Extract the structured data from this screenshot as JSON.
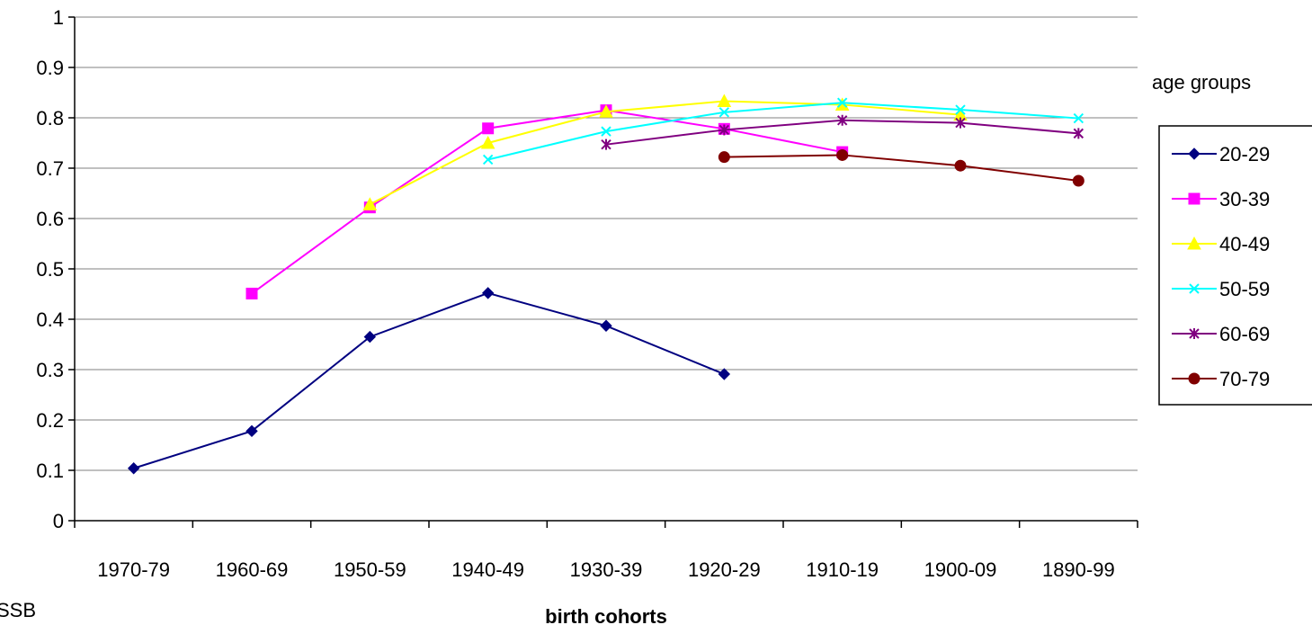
{
  "chart_data": {
    "type": "line",
    "categories": [
      "1970-79",
      "1960-69",
      "1950-59",
      "1940-49",
      "1930-39",
      "1920-29",
      "1910-19",
      "1900-09",
      "1890-99"
    ],
    "xlabel": "birth cohorts",
    "ylabel": "",
    "ylim": [
      0,
      1
    ],
    "yticks": [
      "0",
      "0.1",
      "0.2",
      "0.3",
      "0.4",
      "0.5",
      "0.6",
      "0.7",
      "0.8",
      "0.9",
      "1"
    ],
    "grid": true,
    "legend_title": "age groups",
    "legend_position": "right",
    "series": [
      {
        "name": "20-29",
        "color": "#000080",
        "marker": "diamond",
        "values": [
          0.104,
          0.178,
          0.365,
          0.452,
          0.387,
          0.291,
          null,
          null,
          null
        ]
      },
      {
        "name": "30-39",
        "color": "#FF00FF",
        "marker": "square",
        "values": [
          null,
          0.451,
          0.622,
          0.779,
          0.815,
          0.778,
          0.732,
          null,
          null
        ]
      },
      {
        "name": "40-49",
        "color": "#FFFF00",
        "marker": "triangle",
        "values": [
          null,
          null,
          0.628,
          0.75,
          0.812,
          0.833,
          0.826,
          0.806,
          null
        ]
      },
      {
        "name": "50-59",
        "color": "#00FFFF",
        "marker": "x",
        "values": [
          null,
          null,
          null,
          0.717,
          0.773,
          0.811,
          0.83,
          0.816,
          0.799
        ]
      },
      {
        "name": "60-69",
        "color": "#800080",
        "marker": "star",
        "values": [
          null,
          null,
          null,
          null,
          0.747,
          0.776,
          0.795,
          0.79,
          0.769
        ]
      },
      {
        "name": "70-79",
        "color": "#800000",
        "marker": "circle",
        "values": [
          null,
          null,
          null,
          null,
          null,
          0.722,
          0.726,
          0.705,
          0.675
        ]
      }
    ]
  },
  "footer_note": "SSB"
}
